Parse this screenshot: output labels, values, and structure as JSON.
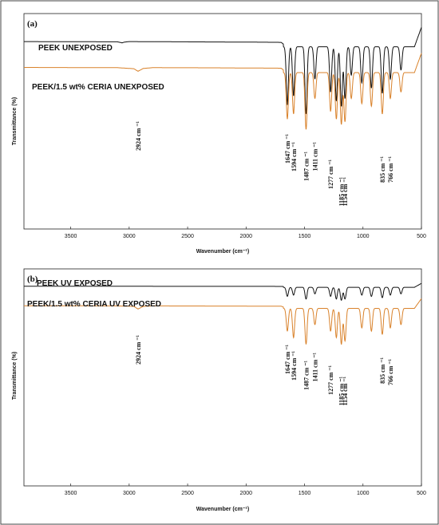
{
  "chart_data": [
    {
      "type": "line",
      "panel_label": "(a)",
      "xlabel": "Wavenumber (cm⁻¹)",
      "ylabel": "Transmittance (%)",
      "xlim": [
        3900,
        500
      ],
      "x_reversed": true,
      "xticks": [
        3500,
        3000,
        2500,
        2000,
        1500,
        1000,
        500
      ],
      "grid": false,
      "series": [
        {
          "name": "PEEK UNEXPOSED",
          "color": "#111111",
          "offset": 0.87,
          "amplitude": 0.6,
          "points": [
            [
              3900,
              0
            ],
            [
              3100,
              0.002
            ],
            [
              3060,
              0.01
            ],
            [
              3040,
              0.004
            ],
            [
              3000,
              0
            ],
            [
              2300,
              0.003
            ],
            [
              2000,
              0.004
            ],
            [
              1700,
              0.006
            ],
            [
              1680,
              0.02
            ],
            [
              1660,
              0.08
            ]
          ],
          "peaks": [
            [
              1647,
              0.45
            ],
            [
              1594,
              0.38
            ],
            [
              1487,
              0.52
            ],
            [
              1411,
              0.25
            ],
            [
              1277,
              0.35
            ],
            [
              1228,
              0.42
            ],
            [
              1185,
              0.46
            ],
            [
              1154,
              0.4
            ],
            [
              1100,
              0.22
            ],
            [
              1010,
              0.28
            ],
            [
              928,
              0.32
            ],
            [
              835,
              0.36
            ],
            [
              766,
              0.25
            ],
            [
              675,
              0.18
            ]
          ]
        },
        {
          "name": "PEEK/1.5 wt% CERIA UNEXPOSED",
          "color": "#d9822b",
          "offset": 0.75,
          "amplitude": 0.6,
          "points": [
            [
              3900,
              0
            ],
            [
              3100,
              0.002
            ],
            [
              2960,
              0.01
            ],
            [
              2924,
              0.03
            ],
            [
              2880,
              0.008
            ],
            [
              2800,
              0.002
            ],
            [
              2300,
              0.003
            ],
            [
              1700,
              0.006
            ],
            [
              1680,
              0.02
            ],
            [
              1660,
              0.06
            ]
          ],
          "peaks": [
            [
              1647,
              0.36
            ],
            [
              1594,
              0.32
            ],
            [
              1487,
              0.44
            ],
            [
              1411,
              0.2
            ],
            [
              1277,
              0.3
            ],
            [
              1228,
              0.36
            ],
            [
              1185,
              0.4
            ],
            [
              1154,
              0.38
            ],
            [
              1100,
              0.2
            ],
            [
              1010,
              0.24
            ],
            [
              928,
              0.26
            ],
            [
              835,
              0.32
            ],
            [
              766,
              0.2
            ],
            [
              675,
              0.15
            ]
          ]
        }
      ],
      "annotations": [
        {
          "x": 2924,
          "text": "2924 cm ⁻¹"
        },
        {
          "x": 1647,
          "text": "1647 cm ⁻¹"
        },
        {
          "x": 1594,
          "text": "1594 cm ⁻¹"
        },
        {
          "x": 1487,
          "text": "1487 cm ⁻¹"
        },
        {
          "x": 1411,
          "text": "1411 cm ⁻¹"
        },
        {
          "x": 1277,
          "text": "1277 cm ⁻¹"
        },
        {
          "x": 1185,
          "text": "1185 cm ⁻¹"
        },
        {
          "x": 1154,
          "text": "1154 cm ⁻¹"
        },
        {
          "x": 835,
          "text": "835 cm ⁻¹"
        },
        {
          "x": 766,
          "text": "766 cm ⁻¹"
        }
      ]
    },
    {
      "type": "line",
      "panel_label": "(b)",
      "xlabel": "Wavenumber (cm⁻¹)",
      "ylabel": "Transmittance (%)",
      "xlim": [
        3900,
        500
      ],
      "x_reversed": true,
      "xticks": [
        3500,
        3000,
        2500,
        2000,
        1500,
        1000,
        500
      ],
      "grid": false,
      "series": [
        {
          "name": "PEEK UV EXPOSED",
          "color": "#111111",
          "offset": 0.92,
          "amplitude": 0.12,
          "points": [
            [
              3900,
              0
            ],
            [
              3100,
              0.002
            ],
            [
              2300,
              0.004
            ],
            [
              1700,
              0.006
            ],
            [
              1680,
              0.01
            ]
          ],
          "peaks": [
            [
              1647,
              0.35
            ],
            [
              1594,
              0.3
            ],
            [
              1487,
              0.45
            ],
            [
              1411,
              0.25
            ],
            [
              1277,
              0.35
            ],
            [
              1228,
              0.45
            ],
            [
              1185,
              0.5
            ],
            [
              1154,
              0.45
            ],
            [
              1010,
              0.3
            ],
            [
              928,
              0.35
            ],
            [
              835,
              0.4
            ],
            [
              766,
              0.3
            ],
            [
              675,
              0.25
            ]
          ]
        },
        {
          "name": "PEEK/1.5 wt% CERIA UV EXPOSED",
          "color": "#d9822b",
          "offset": 0.83,
          "amplitude": 0.3,
          "points": [
            [
              3900,
              0
            ],
            [
              3100,
              0.002
            ],
            [
              2960,
              0.01
            ],
            [
              2924,
              0.05
            ],
            [
              2880,
              0.01
            ],
            [
              2800,
              0.002
            ],
            [
              2300,
              0.004
            ],
            [
              1700,
              0.006
            ],
            [
              1680,
              0.02
            ]
          ],
          "peaks": [
            [
              1647,
              0.35
            ],
            [
              1594,
              0.45
            ],
            [
              1487,
              0.55
            ],
            [
              1411,
              0.25
            ],
            [
              1277,
              0.35
            ],
            [
              1228,
              0.45
            ],
            [
              1185,
              0.55
            ],
            [
              1154,
              0.5
            ],
            [
              1010,
              0.3
            ],
            [
              928,
              0.35
            ],
            [
              835,
              0.4
            ],
            [
              766,
              0.3
            ],
            [
              675,
              0.25
            ]
          ]
        }
      ],
      "annotations": [
        {
          "x": 2924,
          "text": "2924 cm ⁻¹"
        },
        {
          "x": 1647,
          "text": "1647 cm ⁻¹"
        },
        {
          "x": 1594,
          "text": "1594 cm ⁻¹"
        },
        {
          "x": 1487,
          "text": "1487 cm ⁻¹"
        },
        {
          "x": 1411,
          "text": "1411 cm ⁻¹"
        },
        {
          "x": 1277,
          "text": "1277 cm ⁻¹"
        },
        {
          "x": 1185,
          "text": "1185 cm ⁻¹"
        },
        {
          "x": 1154,
          "text": "1154 cm ⁻¹"
        },
        {
          "x": 835,
          "text": "835 cm ⁻¹"
        },
        {
          "x": 766,
          "text": "766 cm ⁻¹"
        }
      ]
    }
  ]
}
